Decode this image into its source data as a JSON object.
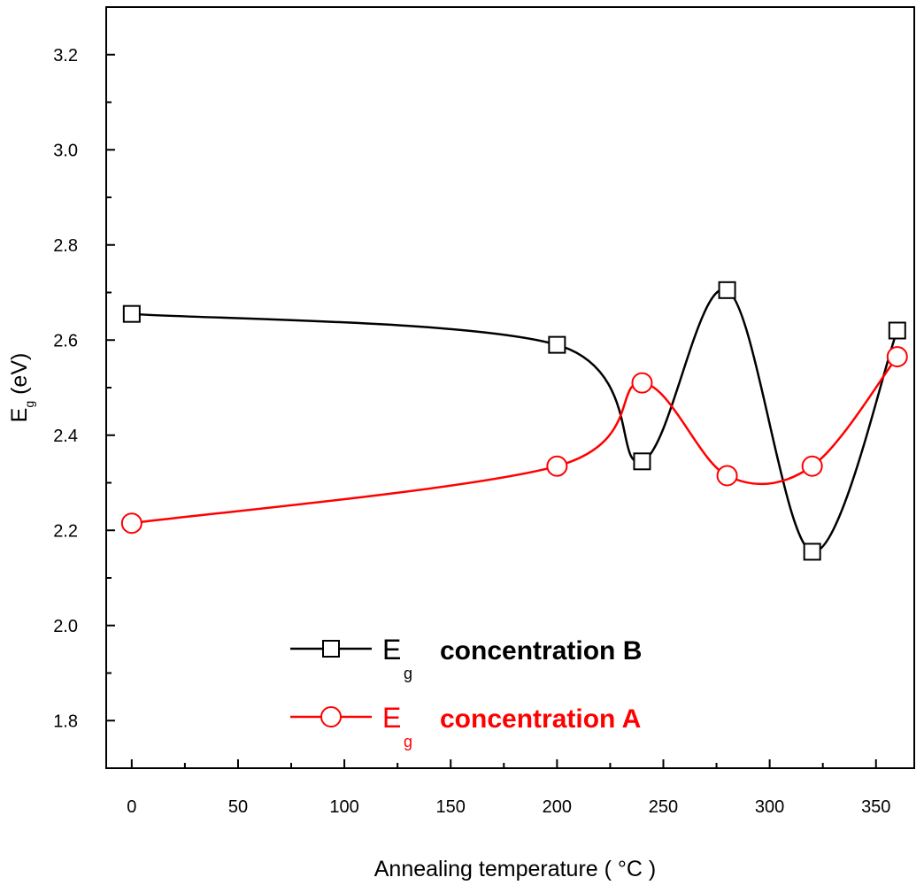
{
  "chart_data": {
    "type": "line",
    "xlabel": "Annealing temperature ( °C )",
    "ylabel_main": "E",
    "ylabel_sub": "g",
    "ylabel_unit": "(eV)",
    "xlim": [
      -12,
      368
    ],
    "ylim": [
      1.7,
      3.3
    ],
    "xticks": [
      0,
      50,
      100,
      150,
      200,
      250,
      300,
      350
    ],
    "yticks": [
      1.8,
      2.0,
      2.2,
      2.4,
      2.6,
      2.8,
      3.0,
      3.2
    ],
    "series": [
      {
        "name": "Eg concentration B",
        "legend_main": "E",
        "legend_sub": "g",
        "legend_label": "concentration B",
        "color": "#000000",
        "marker": "square",
        "x": [
          0,
          200,
          240,
          280,
          320,
          360
        ],
        "y": [
          2.655,
          2.59,
          2.345,
          2.705,
          2.155,
          2.62
        ]
      },
      {
        "name": "Eg concentration A",
        "legend_main": "E",
        "legend_sub": "g",
        "legend_label": "concentration A",
        "color": "#ff0000",
        "marker": "circle",
        "x": [
          0,
          200,
          240,
          280,
          320,
          360
        ],
        "y": [
          2.215,
          2.335,
          2.51,
          2.315,
          2.335,
          2.565
        ]
      }
    ],
    "legend_position": "bottom-center",
    "grid": false
  }
}
